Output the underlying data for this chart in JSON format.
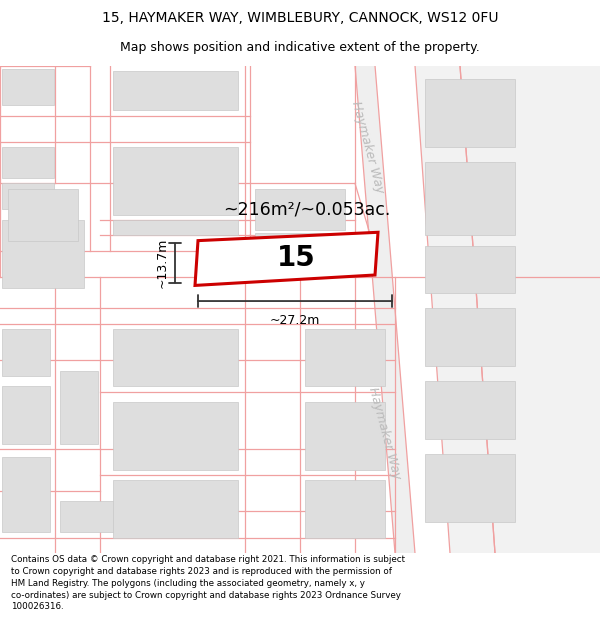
{
  "title_line1": "15, HAYMAKER WAY, WIMBLEBURY, CANNOCK, WS12 0FU",
  "title_line2": "Map shows position and indicative extent of the property.",
  "footer_text": "Contains OS data © Crown copyright and database right 2021. This information is subject to Crown copyright and database rights 2023 and is reproduced with the permission of HM Land Registry. The polygons (including the associated geometry, namely x, y co-ordinates) are subject to Crown copyright and database rights 2023 Ordnance Survey 100026316.",
  "map_bg": "#f7f7f7",
  "building_fill": "#dedede",
  "building_edge": "#c8c8c8",
  "road_line_color": "#f0a0a0",
  "highlight_color": "#cc0000",
  "dim_color": "#333333",
  "area_text": "~216m²/~0.053ac.",
  "width_text": "~27.2m",
  "height_text": "~13.7m",
  "plot_label": "15",
  "street_label": "Haymaker Way",
  "title_fontsize": 10,
  "subtitle_fontsize": 9,
  "footer_fontsize": 6.3
}
